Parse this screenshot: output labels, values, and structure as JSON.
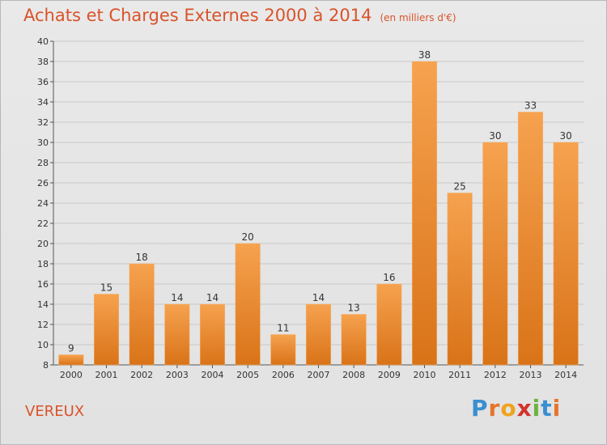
{
  "title": "Achats et Charges Externes 2000 à 2014",
  "subtitle": "(en milliers d'€)",
  "location": "VEREUX",
  "logo": {
    "text": "Proxiti",
    "letters": [
      "P",
      "r",
      "o",
      "x",
      "i",
      "t",
      "i"
    ],
    "colors": [
      "#3a8fd1",
      "#e8742a",
      "#f0a21d",
      "#d1332b",
      "#6bb43f",
      "#3a8fd1",
      "#e8742a"
    ]
  },
  "colors": {
    "title": "#d9532b",
    "bar_top": "#f6a24f",
    "bar_bottom": "#d97318",
    "grid": "#c8c8c8"
  },
  "chart_data": {
    "type": "bar",
    "title": "Achats et Charges Externes 2000 à 2014",
    "subtitle": "(en milliers d'€)",
    "categories": [
      "2000",
      "2001",
      "2002",
      "2003",
      "2004",
      "2005",
      "2006",
      "2007",
      "2008",
      "2009",
      "2010",
      "2011",
      "2012",
      "2013",
      "2014"
    ],
    "values": [
      9,
      15,
      18,
      14,
      14,
      20,
      11,
      14,
      13,
      16,
      38,
      25,
      30,
      33,
      30
    ],
    "ylim": [
      8,
      40
    ],
    "yticks": [
      8,
      10,
      12,
      14,
      16,
      18,
      20,
      22,
      24,
      26,
      28,
      30,
      32,
      34,
      36,
      38,
      40
    ],
    "ytick_labels": [
      "8",
      "10",
      "12",
      "14",
      "16",
      "18",
      "20",
      "22",
      "24",
      "26",
      "28",
      "30",
      "32",
      "34",
      "36",
      "38",
      "40"
    ],
    "xlabel": "",
    "ylabel": "",
    "grid": true,
    "legend": "none"
  }
}
